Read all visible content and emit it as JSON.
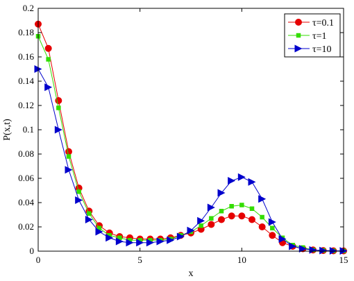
{
  "chart_data": {
    "type": "line",
    "title": "",
    "xlabel": "x",
    "ylabel": "P(x,t)",
    "xlim": [
      0,
      15
    ],
    "ylim": [
      0,
      0.2
    ],
    "xticks": [
      0,
      5,
      10,
      15
    ],
    "yticks": [
      0,
      0.02,
      0.04,
      0.06,
      0.08,
      0.1,
      0.12,
      0.14,
      0.16,
      0.18,
      0.2
    ],
    "grid": false,
    "legend_position": "top-right",
    "x": [
      0,
      0.5,
      1,
      1.5,
      2,
      2.5,
      3,
      3.5,
      4,
      4.5,
      5,
      5.5,
      6,
      6.5,
      7,
      7.5,
      8,
      8.5,
      9,
      9.5,
      10,
      10.5,
      11,
      11.5,
      12,
      12.5,
      13,
      13.5,
      14,
      14.5,
      15
    ],
    "series": [
      {
        "name": "τ=0.1",
        "color": "#e60000",
        "marker": "circle",
        "values": [
          0.187,
          0.167,
          0.124,
          0.082,
          0.052,
          0.033,
          0.021,
          0.015,
          0.012,
          0.011,
          0.01,
          0.01,
          0.01,
          0.011,
          0.013,
          0.015,
          0.018,
          0.022,
          0.026,
          0.029,
          0.029,
          0.026,
          0.02,
          0.013,
          0.007,
          0.004,
          0.002,
          0.001,
          0.0005,
          0.0003,
          0.0002
        ]
      },
      {
        "name": "τ=1",
        "color": "#33dd00",
        "marker": "square",
        "values": [
          0.177,
          0.158,
          0.118,
          0.078,
          0.049,
          0.031,
          0.019,
          0.013,
          0.011,
          0.009,
          0.009,
          0.009,
          0.009,
          0.01,
          0.013,
          0.016,
          0.021,
          0.027,
          0.033,
          0.037,
          0.038,
          0.035,
          0.028,
          0.019,
          0.011,
          0.005,
          0.003,
          0.001,
          0.0006,
          0.0003,
          0.0002
        ]
      },
      {
        "name": "τ=10",
        "color": "#0000cc",
        "marker": "triangle-right",
        "values": [
          0.15,
          0.135,
          0.1,
          0.067,
          0.042,
          0.026,
          0.016,
          0.011,
          0.008,
          0.007,
          0.007,
          0.007,
          0.008,
          0.009,
          0.012,
          0.017,
          0.025,
          0.036,
          0.048,
          0.058,
          0.061,
          0.057,
          0.043,
          0.024,
          0.01,
          0.004,
          0.002,
          0.001,
          0.0005,
          0.0003,
          0.0002
        ]
      }
    ]
  }
}
